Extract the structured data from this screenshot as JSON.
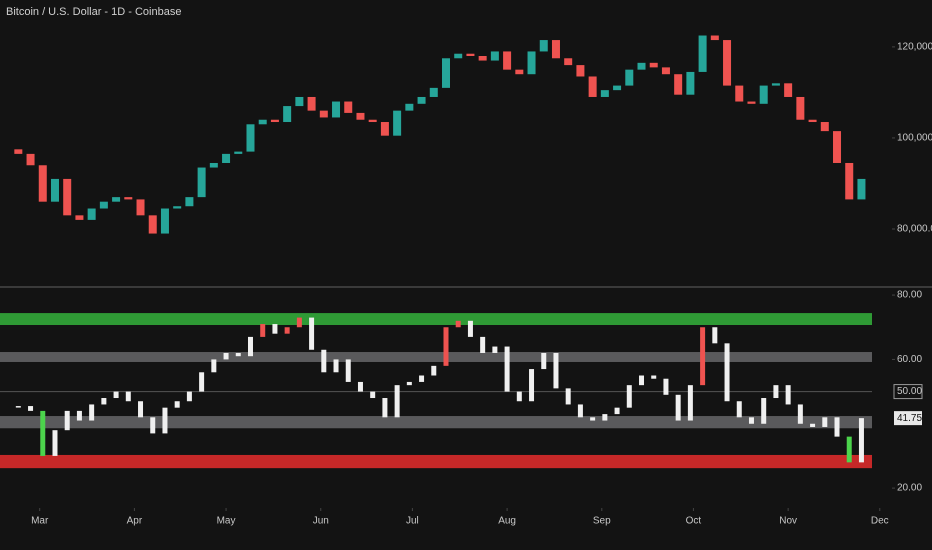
{
  "chart_data": [
    {
      "type": "candlestick",
      "title": "Bitcoin / U.S. Dollar - 1D - Coinbase",
      "categories": [
        null,
        null,
        null,
        null,
        null,
        null,
        null,
        null,
        null,
        null,
        null,
        null,
        null,
        null,
        null,
        null,
        null,
        null,
        null,
        null,
        null,
        null,
        null,
        null,
        null,
        null,
        null,
        null,
        null,
        null,
        null,
        null,
        null,
        null,
        null,
        null,
        null,
        null,
        null,
        null,
        null,
        null,
        null,
        null,
        null,
        null,
        null,
        null,
        null,
        null,
        null,
        null,
        null,
        null,
        null,
        null,
        null,
        null,
        null,
        null,
        null,
        null,
        null,
        null,
        null,
        null,
        null,
        null,
        null,
        null
      ],
      "open": [
        97500,
        96500,
        94000,
        86000,
        91000,
        83000,
        82000,
        84500,
        86000,
        87000,
        86500,
        83000,
        79000,
        84500,
        85000,
        87000,
        93500,
        94500,
        96500,
        97000,
        103000,
        104000,
        103500,
        107000,
        109000,
        106000,
        104500,
        108000,
        105500,
        104000,
        103500,
        100500,
        106000,
        107500,
        109000,
        111000,
        117500,
        118500,
        118000,
        117000,
        119000,
        115000,
        114000,
        119000,
        121500,
        117500,
        116000,
        113500,
        109000,
        110500,
        111500,
        115000,
        116500,
        115500,
        114000,
        109500,
        114500,
        122500,
        121500,
        111500,
        108000,
        107500,
        111500,
        112000,
        109000,
        104000,
        103500,
        101500,
        94500,
        86500
      ],
      "close": [
        96500,
        94000,
        86000,
        91000,
        83000,
        82000,
        84500,
        86000,
        87000,
        86500,
        83000,
        79000,
        84500,
        85000,
        87000,
        93500,
        94500,
        96500,
        97000,
        103000,
        104000,
        103500,
        107000,
        109000,
        106000,
        104500,
        108000,
        105500,
        104000,
        103500,
        100500,
        106000,
        107500,
        109000,
        111000,
        117500,
        118500,
        118000,
        117000,
        119000,
        115000,
        114000,
        119000,
        121500,
        117500,
        116000,
        113500,
        109000,
        110500,
        111500,
        115000,
        116500,
        115500,
        114000,
        109500,
        114500,
        122500,
        121500,
        111500,
        108000,
        107500,
        111500,
        112000,
        109000,
        104000,
        103500,
        101500,
        94500,
        86500,
        91000
      ],
      "up_color": "#26a69a",
      "down_color": "#ef5350",
      "xlim": [
        -1.5,
        71.5
      ],
      "ylim": [
        67700,
        130300
      ],
      "yticks": [
        {
          "value": 120000,
          "label": "120,000.00"
        },
        {
          "value": 100000,
          "label": "100,000.00"
        },
        {
          "value": 80000,
          "label": "80,000.00"
        }
      ]
    },
    {
      "type": "oscillator",
      "categories": [
        null,
        null,
        null,
        null,
        null,
        null,
        null,
        null,
        null,
        null,
        null,
        null,
        null,
        null,
        null,
        null,
        null,
        null,
        null,
        null,
        null,
        null,
        null,
        null,
        null,
        null,
        null,
        null,
        null,
        null,
        null,
        null,
        null,
        null,
        null,
        null,
        null,
        null,
        null,
        null,
        null,
        null,
        null,
        null,
        null,
        null,
        null,
        null,
        null,
        null,
        null,
        null,
        null,
        null,
        null,
        null,
        null,
        null,
        null,
        null,
        null,
        null,
        null,
        null,
        null,
        null,
        null,
        null,
        null,
        null
      ],
      "values": [
        45.5,
        44,
        30,
        38,
        44,
        41,
        46,
        48,
        50,
        47,
        42,
        37,
        45,
        47,
        50,
        56,
        60,
        62,
        61,
        67,
        71,
        68,
        70,
        73,
        63,
        56,
        60,
        53,
        50,
        48,
        42,
        52,
        53,
        55,
        58,
        70,
        72,
        67,
        62,
        64,
        50,
        47,
        57,
        62,
        51,
        46,
        42,
        41,
        43,
        45,
        52,
        55,
        54,
        49,
        41,
        52,
        70,
        65,
        47,
        42,
        40,
        48,
        52,
        46,
        40,
        39,
        42,
        36,
        28,
        41.75
      ],
      "color": "#f0f0f0",
      "overbought": 70,
      "overbought_color": "#ef5350",
      "oversold": 30,
      "oversold_color": "#4cd44c",
      "bands": [
        {
          "from": 70.7,
          "to": 74.4,
          "color": "#2f9a35"
        },
        {
          "from": 59.2,
          "to": 62.3,
          "color": "#5a5a5c"
        },
        {
          "from": 38.6,
          "to": 42.4,
          "color": "#5a5a5c"
        },
        {
          "from": 26.2,
          "to": 30.3,
          "color": "#c62828"
        }
      ],
      "midline": {
        "value": 50,
        "label": "50.00"
      },
      "xlim": [
        -1.5,
        71.5
      ],
      "ylim": [
        16.3,
        82.2
      ],
      "yticks": [
        {
          "value": 80,
          "label": "80.00"
        },
        {
          "value": 60,
          "label": "60.00"
        },
        {
          "value": 20,
          "label": "20.00"
        }
      ],
      "xticks": [
        {
          "value": 1.75,
          "label": "Mar"
        },
        {
          "value": 9.5,
          "label": "Apr"
        },
        {
          "value": 17,
          "label": "May"
        },
        {
          "value": 24.75,
          "label": "Jun"
        },
        {
          "value": 32.25,
          "label": "Jul"
        },
        {
          "value": 40,
          "label": "Aug"
        },
        {
          "value": 47.75,
          "label": "Sep"
        },
        {
          "value": 55.25,
          "label": "Oct"
        },
        {
          "value": 63,
          "label": "Nov"
        },
        {
          "value": 70.5,
          "label": "Dec"
        }
      ]
    }
  ]
}
